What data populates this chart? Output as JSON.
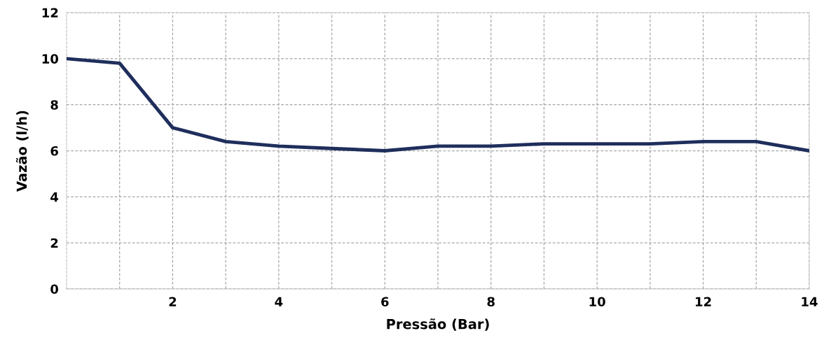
{
  "chart_data": {
    "type": "line",
    "xlabel": "Pressão (Bar)",
    "ylabel": "Vazão (l/h)",
    "x": [
      0,
      1,
      2,
      3,
      4,
      5,
      6,
      7,
      8,
      9,
      10,
      11,
      12,
      13,
      14
    ],
    "series": [
      {
        "color": "#1f2e5c",
        "values": [
          10,
          9.8,
          7,
          6.4,
          6.2,
          6.1,
          6.0,
          6.2,
          6.2,
          6.3,
          6.3,
          6.3,
          6.4,
          6.4,
          6.0
        ]
      }
    ],
    "xlim": [
      0,
      14
    ],
    "xticks": [
      {
        "value": 1,
        "label": null
      },
      2,
      {
        "value": 3,
        "label": null
      },
      4,
      {
        "value": 5,
        "label": null
      },
      6,
      {
        "value": 7,
        "label": null
      },
      8,
      {
        "value": 9,
        "label": null
      },
      10,
      {
        "value": 11,
        "label": null
      },
      12,
      {
        "value": 13,
        "label": null
      },
      14
    ],
    "ylim": [
      0,
      12
    ],
    "yticks": [
      0,
      2,
      4,
      6,
      8,
      10,
      12
    ],
    "grid": true,
    "marker": "none",
    "line_style": "solid",
    "legend": false
  }
}
